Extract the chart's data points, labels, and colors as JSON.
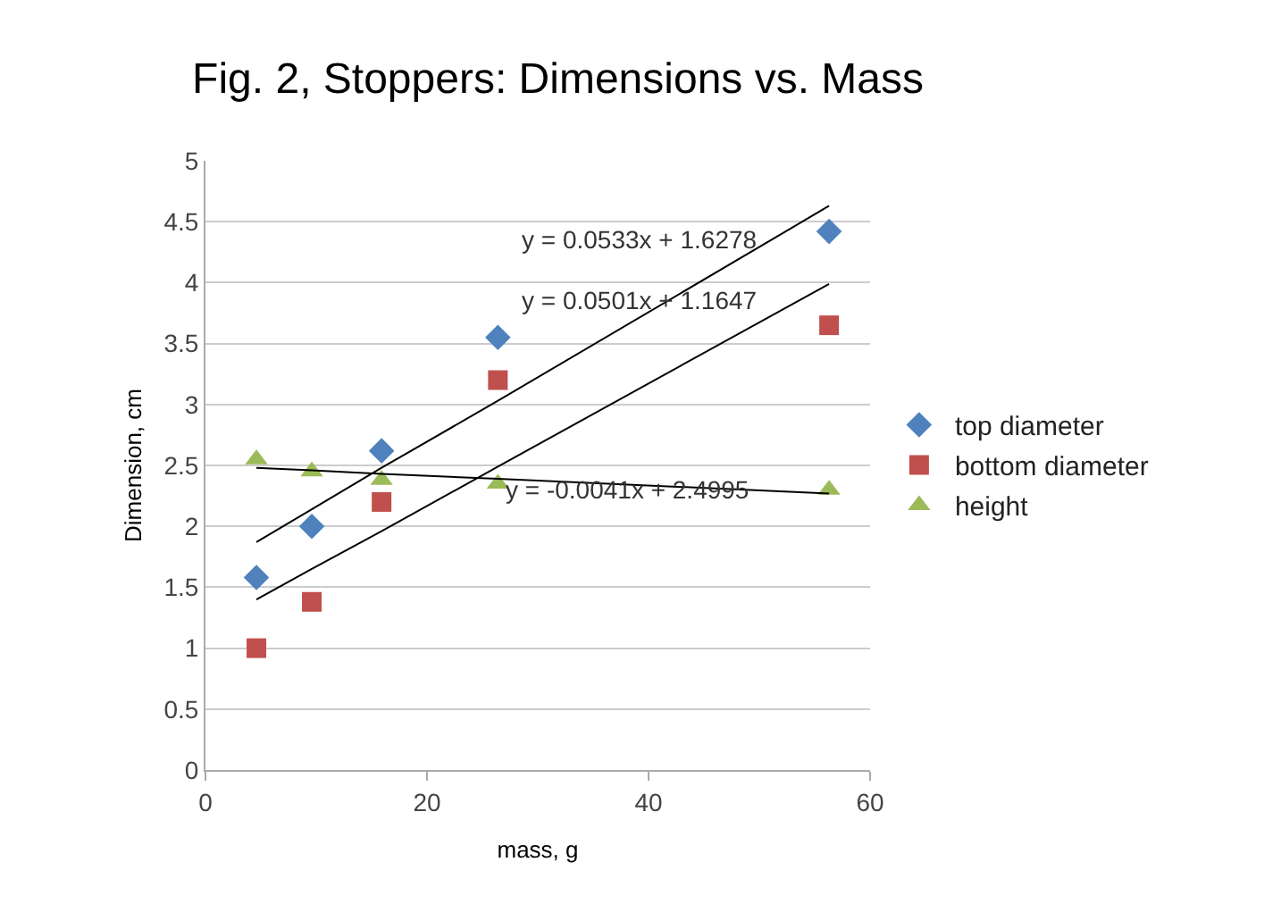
{
  "chart_data": {
    "type": "scatter",
    "title": "Fig. 2, Stoppers: Dimensions vs. Mass",
    "xlabel": "mass, g",
    "ylabel": "Dimension, cm",
    "x": [
      4.6,
      9.6,
      15.9,
      26.4,
      56.3
    ],
    "series": [
      {
        "name": "top diameter",
        "color": "#4f81bd",
        "marker": "diamond",
        "values": [
          1.58,
          2.0,
          2.62,
          3.55,
          4.42
        ]
      },
      {
        "name": "bottom diameter",
        "color": "#c0504d",
        "marker": "square",
        "values": [
          1.0,
          1.38,
          2.2,
          3.2,
          3.65
        ]
      },
      {
        "name": "height",
        "color": "#9bbb59",
        "marker": "triangle",
        "values": [
          2.55,
          2.45,
          2.38,
          2.35,
          2.3
        ]
      },
      {
        "type": "line",
        "color": "#000000",
        "marker": "none",
        "values": [
          1.87,
          2.14,
          2.48,
          3.03,
          4.63
        ]
      },
      {
        "type": "line",
        "color": "#000000",
        "marker": "none",
        "values": [
          1.4,
          1.65,
          1.96,
          2.49,
          3.99
        ]
      },
      {
        "type": "line",
        "color": "#000000",
        "marker": "none",
        "values": [
          2.48,
          2.46,
          2.43,
          2.39,
          2.27
        ]
      }
    ],
    "annotations": [
      "y = 0.0533x + 1.6278",
      "y = 0.0501x + 1.1647",
      {
        "text": "y = -0.0041x + 2.4995",
        "x": 38,
        "y": 2.3
      }
    ],
    "xlim": [
      0,
      60
    ],
    "xticks": [
      0,
      20,
      40,
      60
    ],
    "ylim": [
      0,
      5
    ],
    "yticks": [
      0,
      0.5,
      1,
      1.5,
      2,
      2.5,
      3,
      3.5,
      4,
      4.5,
      5
    ],
    "grid": "y",
    "legend": "right"
  }
}
